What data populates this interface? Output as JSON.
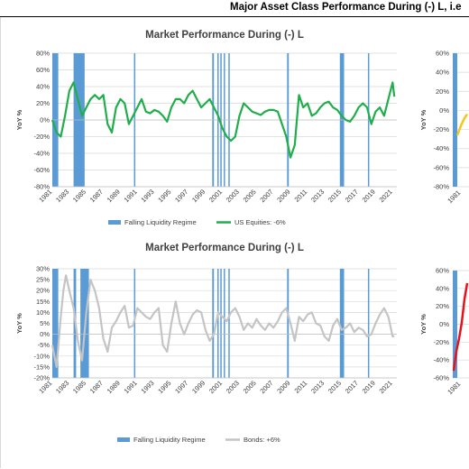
{
  "header": {
    "title": "Major Asset Class Performance During (-) L, i.e"
  },
  "chart_data": [
    {
      "type": "line",
      "title": "Market Performance During (-) L",
      "ylabel": "YoY %",
      "xlabel": "",
      "ylim": [
        -80,
        80
      ],
      "yticks": [
        "80%",
        "60%",
        "40%",
        "20%",
        "0%",
        "-20%",
        "-40%",
        "-60%",
        "-80%"
      ],
      "xticks": [
        "1981",
        "1983",
        "1985",
        "1987",
        "1989",
        "1991",
        "1993",
        "1995",
        "1997",
        "1999",
        "2001",
        "2003",
        "2005",
        "2007",
        "2009",
        "2011",
        "2013",
        "2015",
        "2017",
        "2019",
        "2021"
      ],
      "legend": [
        "Falling Liquidity Regime",
        "US Equities: -6%"
      ],
      "regime_periods": [
        [
          1981.0,
          1981.7
        ],
        [
          1983.5,
          1984.8
        ],
        [
          1990.6,
          1990.7
        ],
        [
          1999.8,
          2000.0
        ],
        [
          2000.4,
          2000.5
        ],
        [
          2000.75,
          2000.85
        ],
        [
          2001.15,
          2001.3
        ],
        [
          2001.7,
          2001.8
        ],
        [
          2008.6,
          2008.8
        ],
        [
          2014.8,
          2015.3
        ],
        [
          2018.1,
          2018.2
        ]
      ],
      "series": [
        {
          "name": "US Equities: -6%",
          "color": "#1fae4a",
          "x": [
            1981,
            1981.5,
            1982,
            1982.5,
            1983,
            1983.5,
            1984,
            1984.5,
            1985,
            1985.5,
            1986,
            1986.5,
            1987,
            1987.5,
            1988,
            1988.5,
            1989,
            1989.5,
            1990,
            1990.5,
            1991,
            1991.5,
            1992,
            1992.5,
            1993,
            1993.5,
            1994,
            1994.5,
            1995,
            1995.5,
            1996,
            1996.5,
            1997,
            1997.5,
            1998,
            1998.5,
            1999,
            1999.5,
            2000,
            2000.5,
            2001,
            2001.5,
            2002,
            2002.5,
            2003,
            2003.5,
            2004,
            2004.5,
            2005,
            2005.5,
            2006,
            2006.5,
            2007,
            2007.5,
            2008,
            2008.5,
            2009,
            2009.5,
            2010,
            2010.5,
            2011,
            2011.5,
            2012,
            2012.5,
            2013,
            2013.5,
            2014,
            2014.5,
            2015,
            2015.5,
            2016,
            2016.5,
            2017,
            2017.5,
            2018,
            2018.5,
            2019,
            2019.5,
            2020,
            2020.5,
            2021,
            2021.2
          ],
          "values": [
            0,
            -15,
            -20,
            5,
            35,
            45,
            25,
            5,
            15,
            25,
            30,
            25,
            30,
            -5,
            -15,
            15,
            25,
            20,
            -5,
            5,
            15,
            25,
            10,
            8,
            12,
            10,
            5,
            -2,
            15,
            25,
            25,
            20,
            30,
            35,
            25,
            15,
            20,
            25,
            15,
            5,
            -10,
            -20,
            -25,
            -20,
            5,
            20,
            15,
            10,
            8,
            6,
            10,
            12,
            12,
            10,
            -5,
            -20,
            -45,
            -30,
            30,
            15,
            20,
            5,
            8,
            15,
            20,
            22,
            15,
            12,
            5,
            0,
            -2,
            5,
            15,
            20,
            15,
            -5,
            10,
            15,
            5,
            25,
            45,
            28
          ]
        }
      ]
    },
    {
      "type": "line",
      "title": "Market Performance During (-) L",
      "ylabel": "YoY %",
      "xlabel": "",
      "ylim": [
        -20,
        30
      ],
      "yticks": [
        "30%",
        "25%",
        "20%",
        "15%",
        "10%",
        "5%",
        "0%",
        "-5%",
        "-10%",
        "-15%",
        "-20%"
      ],
      "xticks": [
        "1981",
        "1983",
        "1985",
        "1987",
        "1989",
        "1991",
        "1993",
        "1995",
        "1997",
        "1999",
        "2001",
        "2003",
        "2005",
        "2007",
        "2009",
        "2011",
        "2013",
        "2015",
        "2017",
        "2019",
        "2021"
      ],
      "legend": [
        "Falling Liquidity Regime",
        "Bonds: +6%"
      ],
      "regime_periods": [
        [
          1981.0,
          1981.7
        ],
        [
          1983.5,
          1983.8
        ],
        [
          1984.3,
          1985.3
        ],
        [
          1990.6,
          1990.7
        ],
        [
          1999.8,
          2000.0
        ],
        [
          2000.4,
          2000.5
        ],
        [
          2000.75,
          2000.85
        ],
        [
          2001.15,
          2001.3
        ],
        [
          2001.7,
          2001.8
        ],
        [
          2008.6,
          2008.8
        ],
        [
          2014.8,
          2015.3
        ],
        [
          2018.1,
          2018.2
        ]
      ],
      "series": [
        {
          "name": "Bonds: +6%",
          "color": "#c4c4c4",
          "x": [
            1981,
            1981.5,
            1982,
            1982.3,
            1982.6,
            1983,
            1983.5,
            1984,
            1984.5,
            1985,
            1985.5,
            1986,
            1986.5,
            1987,
            1987.5,
            1988,
            1988.5,
            1989,
            1989.5,
            1990,
            1990.5,
            1991,
            1991.5,
            1992,
            1992.5,
            1993,
            1993.5,
            1994,
            1994.5,
            1995,
            1995.5,
            1996,
            1996.5,
            1997,
            1997.5,
            1998,
            1998.5,
            1999,
            1999.5,
            2000,
            2000.5,
            2001,
            2001.5,
            2002,
            2002.5,
            2003,
            2003.5,
            2004,
            2004.5,
            2005,
            2005.5,
            2006,
            2006.5,
            2007,
            2007.5,
            2008,
            2008.5,
            2009,
            2009.5,
            2010,
            2010.5,
            2011,
            2011.5,
            2012,
            2012.5,
            2013,
            2013.5,
            2014,
            2014.5,
            2015,
            2015.5,
            2016,
            2016.5,
            2017,
            2017.5,
            2018,
            2018.5,
            2019,
            2019.5,
            2020,
            2020.5,
            2021,
            2021.2
          ],
          "values": [
            -5,
            -15,
            8,
            20,
            27,
            20,
            12,
            -3,
            -12,
            10,
            25,
            20,
            12,
            -2,
            -8,
            3,
            6,
            10,
            13,
            3,
            4,
            12,
            10,
            8,
            7,
            10,
            12,
            -5,
            -8,
            5,
            15,
            5,
            0,
            5,
            9,
            11,
            10,
            2,
            -3,
            0,
            10,
            8,
            6,
            10,
            12,
            8,
            2,
            5,
            3,
            7,
            4,
            2,
            5,
            3,
            6,
            10,
            12,
            5,
            -3,
            8,
            6,
            9,
            10,
            5,
            4,
            -1,
            -3,
            4,
            7,
            2,
            3,
            5,
            1,
            3,
            2,
            -1,
            0,
            5,
            9,
            12,
            8,
            -1,
            -1
          ]
        }
      ]
    }
  ],
  "side_axes": [
    {
      "yticks": [
        "60%",
        "40%",
        "20%",
        "0%",
        "-20%",
        "-40%",
        "-60%",
        "-80%"
      ],
      "ylabel": "YoY %",
      "xtick_partial": "1981"
    },
    {
      "yticks": [
        "60%",
        "40%",
        "20%",
        "0%",
        "-20%",
        "-40%",
        "-60%"
      ],
      "ylabel": "YoY %",
      "xtick_partial": "1981"
    }
  ],
  "colors": {
    "regime": "#5b9bd5",
    "gridline": "#d9d9d9"
  }
}
